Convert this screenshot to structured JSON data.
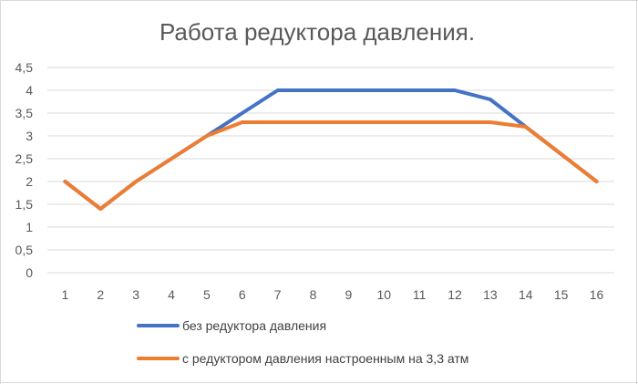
{
  "chart_data": {
    "type": "line",
    "title": "Работа редуктора давления.",
    "xlabel": "",
    "ylabel": "",
    "categories": [
      "1",
      "2",
      "3",
      "4",
      "5",
      "6",
      "7",
      "8",
      "9",
      "10",
      "11",
      "12",
      "13",
      "14",
      "15",
      "16"
    ],
    "y_tick_labels": [
      "0",
      "0,5",
      "1",
      "1,5",
      "2",
      "2,5",
      "3",
      "3,5",
      "4",
      "4,5"
    ],
    "ylim": [
      0,
      4.5
    ],
    "grid": true,
    "legend_position": "bottom",
    "series": [
      {
        "name": "без редуктора давления",
        "color": "#4472c4",
        "values": [
          2,
          1.4,
          2,
          2.5,
          3,
          3.5,
          4,
          4,
          4,
          4,
          4,
          4,
          3.8,
          3.2,
          2.6,
          2
        ]
      },
      {
        "name": "с редуктором давления настроенным на 3,3 атм",
        "color": "#ed7d31",
        "values": [
          2,
          1.4,
          2,
          2.5,
          3,
          3.3,
          3.3,
          3.3,
          3.3,
          3.3,
          3.3,
          3.3,
          3.3,
          3.2,
          2.6,
          2
        ]
      }
    ]
  }
}
